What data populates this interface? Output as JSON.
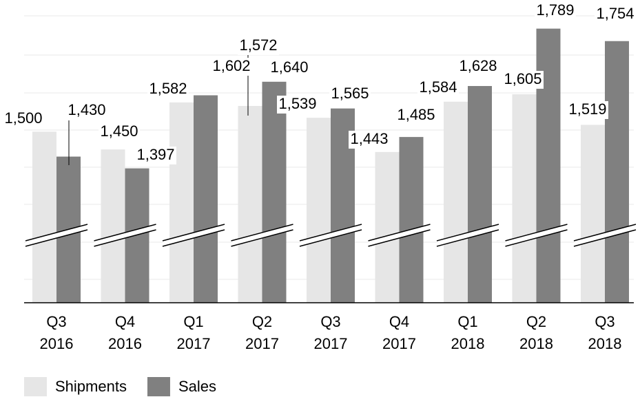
{
  "chart_data": {
    "type": "bar",
    "categories": [
      "Q3\n2016",
      "Q4\n2016",
      "Q1\n2017",
      "Q2\n2017",
      "Q3\n2017",
      "Q4\n2017",
      "Q1\n2018",
      "Q2\n2018",
      "Q3\n2018"
    ],
    "series": [
      {
        "name": "Shipments",
        "color": "#e6e6e6",
        "values": [
          1500,
          1450,
          1582,
          1572,
          1539,
          1443,
          1584,
          1605,
          1519
        ]
      },
      {
        "name": "Sales",
        "color": "#808080",
        "values": [
          1430,
          1397,
          1602,
          1640,
          1565,
          1485,
          1628,
          1789,
          1754
        ]
      }
    ],
    "value_labels": [
      [
        "1,500",
        "1,450",
        "1,582",
        "1,572",
        "1,539",
        "1,443",
        "1,584",
        "1,605",
        "1,519"
      ],
      [
        "1,430",
        "1,397",
        "1,602",
        "1,640",
        "1,565",
        "1,485",
        "1,628",
        "1,789",
        "1,754"
      ]
    ],
    "ylim": [
      1020,
      1850
    ],
    "legend": "bottom-left"
  }
}
